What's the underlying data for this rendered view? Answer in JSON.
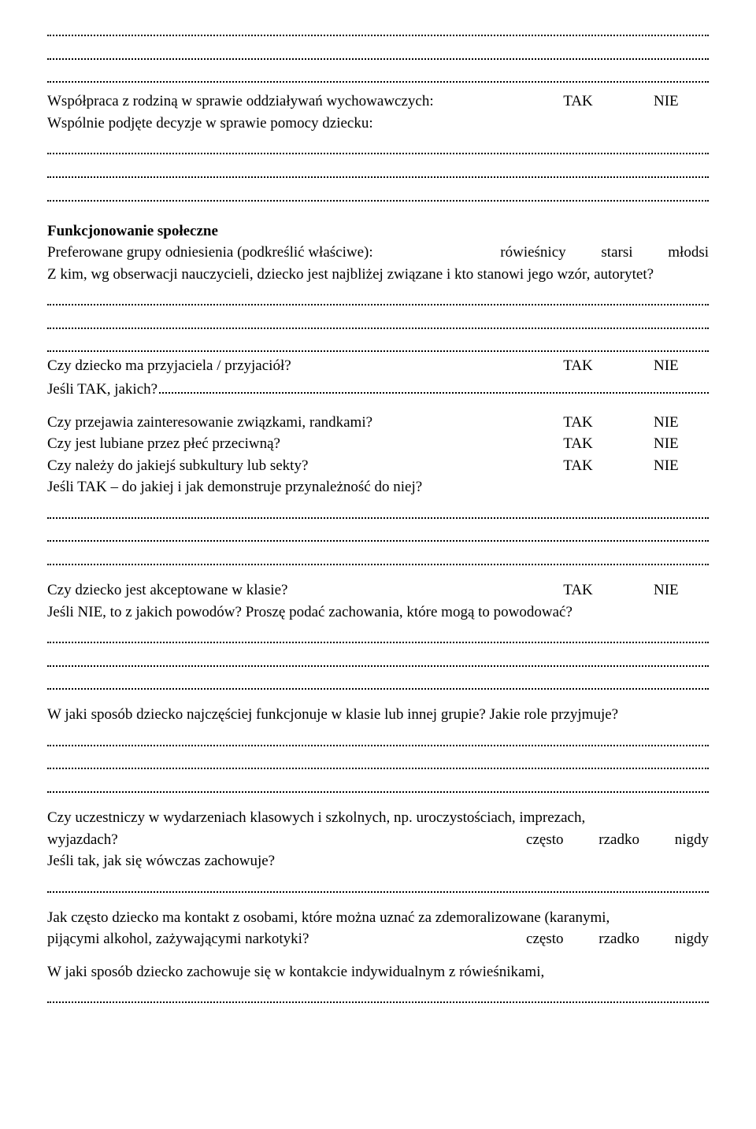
{
  "opts": {
    "yes": "TAK",
    "no": "NIE",
    "often": "często",
    "rarely": "rzadko",
    "never": "nigdy"
  },
  "intro": {
    "coop": "Współpraca z rodziną w sprawie oddziaływań wychowawczych:",
    "decisions": "Wspólnie podjęte decyzje w sprawie pomocy dziecku:"
  },
  "social": {
    "heading": "Funkcjonowanie społeczne",
    "pref_pre": "Preferowane grupy odniesienia (podkreślić właściwe):",
    "pref_a": "rówieśnicy",
    "pref_b": "starsi",
    "pref_c": "młodsi",
    "authority": "Z kim, wg obserwacji nauczycieli, dziecko jest najbliżej związane i kto stanowi jego wzór, autorytet?",
    "friends_q": "Czy dziecko ma przyjaciela / przyjaciół?",
    "friends_if": "Jeśli TAK, jakich?",
    "relationships": "Czy przejawia zainteresowanie związkami, randkami?",
    "liked": "Czy jest lubiane przez płeć przeciwną?",
    "subculture": "Czy należy do jakiejś subkultury lub sekty?",
    "subculture_if": "Jeśli TAK – do jakiej i jak demonstruje przynależność do niej?",
    "accepted": "Czy dziecko jest akceptowane w klasie?",
    "accepted_if": "Jeśli NIE, to z jakich powodów? Proszę podać zachowania, które mogą to powodować?",
    "functions": "W jaki sposób dziecko najczęściej funkcjonuje w klasie lub innej grupie? Jakie role przyjmuje?",
    "events_q": "Czy uczestniczy w wydarzeniach klasowych i szkolnych, np. uroczystościach, imprezach, wyjazdach?",
    "events_if": "Jeśli tak, jak się wówczas zachowuje?",
    "contact_q": "Jak często dziecko ma kontakt z osobami, które można uznać za zdemoralizowane (karanymi, pijącymi alkohol, zażywającymi narkotyki?",
    "indiv": "W jaki sposób dziecko zachowuje się w kontakcie indywidualnym z rówieśnikami,"
  }
}
